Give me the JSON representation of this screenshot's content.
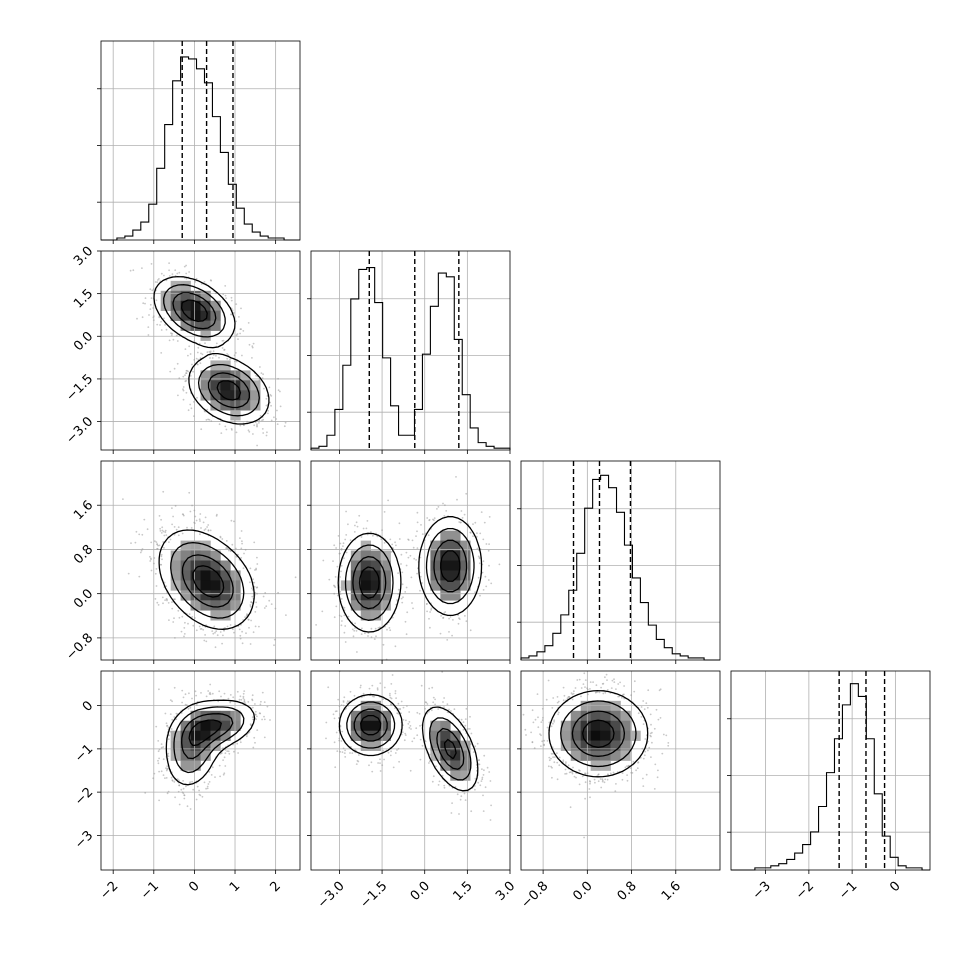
{
  "chart_data": {
    "type": "corner",
    "title": "",
    "grid": true,
    "parameters": [
      {
        "index": 0,
        "range": [
          -2.3,
          2.6
        ],
        "ticks": [
          -2,
          -1,
          0,
          1,
          2
        ],
        "tick_labels": [
          "−2",
          "−1",
          "0",
          "1",
          "2"
        ],
        "quantiles": [
          -0.3,
          0.3,
          0.95
        ]
      },
      {
        "index": 1,
        "range": [
          -4.0,
          3.0
        ],
        "ticks": [
          -3.0,
          -1.5,
          0.0,
          1.5,
          3.0
        ],
        "tick_labels": [
          "−3.0",
          "−1.5",
          "0.0",
          "1.5",
          "3.0"
        ],
        "quantiles": [
          -1.95,
          -0.35,
          1.2
        ]
      },
      {
        "index": 2,
        "range": [
          -1.2,
          2.4
        ],
        "ticks": [
          -0.8,
          0.0,
          0.8,
          1.6
        ],
        "tick_labels": [
          "−0.8",
          "0.0",
          "0.8",
          "1.6"
        ],
        "quantiles": [
          -0.25,
          0.22,
          0.78
        ]
      },
      {
        "index": 3,
        "range": [
          -3.8,
          0.8
        ],
        "ticks": [
          -3,
          -2,
          -1,
          0
        ],
        "tick_labels": [
          "−3",
          "−2",
          "−1",
          "0"
        ],
        "quantiles": [
          -1.3,
          -0.68,
          -0.25
        ]
      }
    ],
    "histograms": [
      {
        "param": 0,
        "bins": [
          -2.3,
          2.6
        ],
        "counts": [
          0,
          0,
          1,
          2,
          5,
          9,
          18,
          36,
          58,
          80,
          92,
          91,
          86,
          79,
          62,
          44,
          28,
          16,
          8,
          4,
          2,
          1,
          1,
          0,
          0
        ],
        "ylim": [
          0,
          100
        ]
      },
      {
        "param": 1,
        "bins": [
          -4.0,
          3.0
        ],
        "counts": [
          1,
          2,
          8,
          22,
          46,
          82,
          98,
          99,
          80,
          50,
          24,
          8,
          8,
          22,
          52,
          78,
          96,
          94,
          60,
          30,
          12,
          4,
          2,
          1,
          1
        ],
        "ylim": [
          0,
          108
        ]
      },
      {
        "param": 2,
        "bins": [
          -1.2,
          2.4
        ],
        "counts": [
          1,
          2,
          4,
          7,
          13,
          22,
          34,
          52,
          74,
          88,
          90,
          84,
          72,
          56,
          40,
          28,
          17,
          10,
          6,
          3,
          2,
          1,
          1,
          0,
          0
        ],
        "ylim": [
          0,
          97
        ]
      },
      {
        "param": 3,
        "bins": [
          -3.8,
          0.8
        ],
        "counts": [
          0,
          0,
          0,
          1,
          1,
          2,
          3,
          5,
          8,
          12,
          18,
          30,
          46,
          62,
          78,
          88,
          82,
          62,
          36,
          16,
          6,
          2,
          1,
          1,
          0
        ],
        "ylim": [
          0,
          94
        ]
      }
    ],
    "joint_density_components": [
      {
        "x": 0,
        "y": 1,
        "modes": [
          {
            "mean": [
              0.0,
              0.9
            ],
            "sd": [
              0.5,
              0.6
            ],
            "rho": -0.4,
            "w": 0.5
          },
          {
            "mean": [
              0.85,
              -1.9
            ],
            "sd": [
              0.5,
              0.6
            ],
            "rho": -0.3,
            "w": 0.5
          }
        ]
      },
      {
        "x": 0,
        "y": 2,
        "modes": [
          {
            "mean": [
              0.1,
              0.35
            ],
            "sd": [
              0.55,
              0.45
            ],
            "rho": -0.3,
            "w": 0.6
          },
          {
            "mean": [
              0.6,
              0.1
            ],
            "sd": [
              0.5,
              0.4
            ],
            "rho": -0.2,
            "w": 0.4
          }
        ]
      },
      {
        "x": 1,
        "y": 2,
        "modes": [
          {
            "mean": [
              -1.95,
              0.2
            ],
            "sd": [
              0.55,
              0.45
            ],
            "rho": 0.0,
            "w": 0.5
          },
          {
            "mean": [
              0.9,
              0.5
            ],
            "sd": [
              0.55,
              0.45
            ],
            "rho": 0.0,
            "w": 0.5
          }
        ]
      },
      {
        "x": 0,
        "y": 3,
        "modes": [
          {
            "mean": [
              0.55,
              -0.45
            ],
            "sd": [
              0.5,
              0.3
            ],
            "rho": 0.3,
            "w": 0.5
          },
          {
            "mean": [
              -0.05,
              -0.95
            ],
            "sd": [
              0.35,
              0.5
            ],
            "rho": 0.2,
            "w": 0.5
          }
        ]
      },
      {
        "x": 1,
        "y": 3,
        "modes": [
          {
            "mean": [
              -1.9,
              -0.45
            ],
            "sd": [
              0.55,
              0.35
            ],
            "rho": 0.0,
            "w": 0.5
          },
          {
            "mean": [
              0.9,
              -1.0
            ],
            "sd": [
              0.5,
              0.5
            ],
            "rho": -0.5,
            "w": 0.5
          }
        ]
      },
      {
        "x": 2,
        "y": 3,
        "modes": [
          {
            "mean": [
              0.2,
              -0.65
            ],
            "sd": [
              0.45,
              0.5
            ],
            "rho": 0.0,
            "w": 1.0
          }
        ]
      }
    ]
  }
}
